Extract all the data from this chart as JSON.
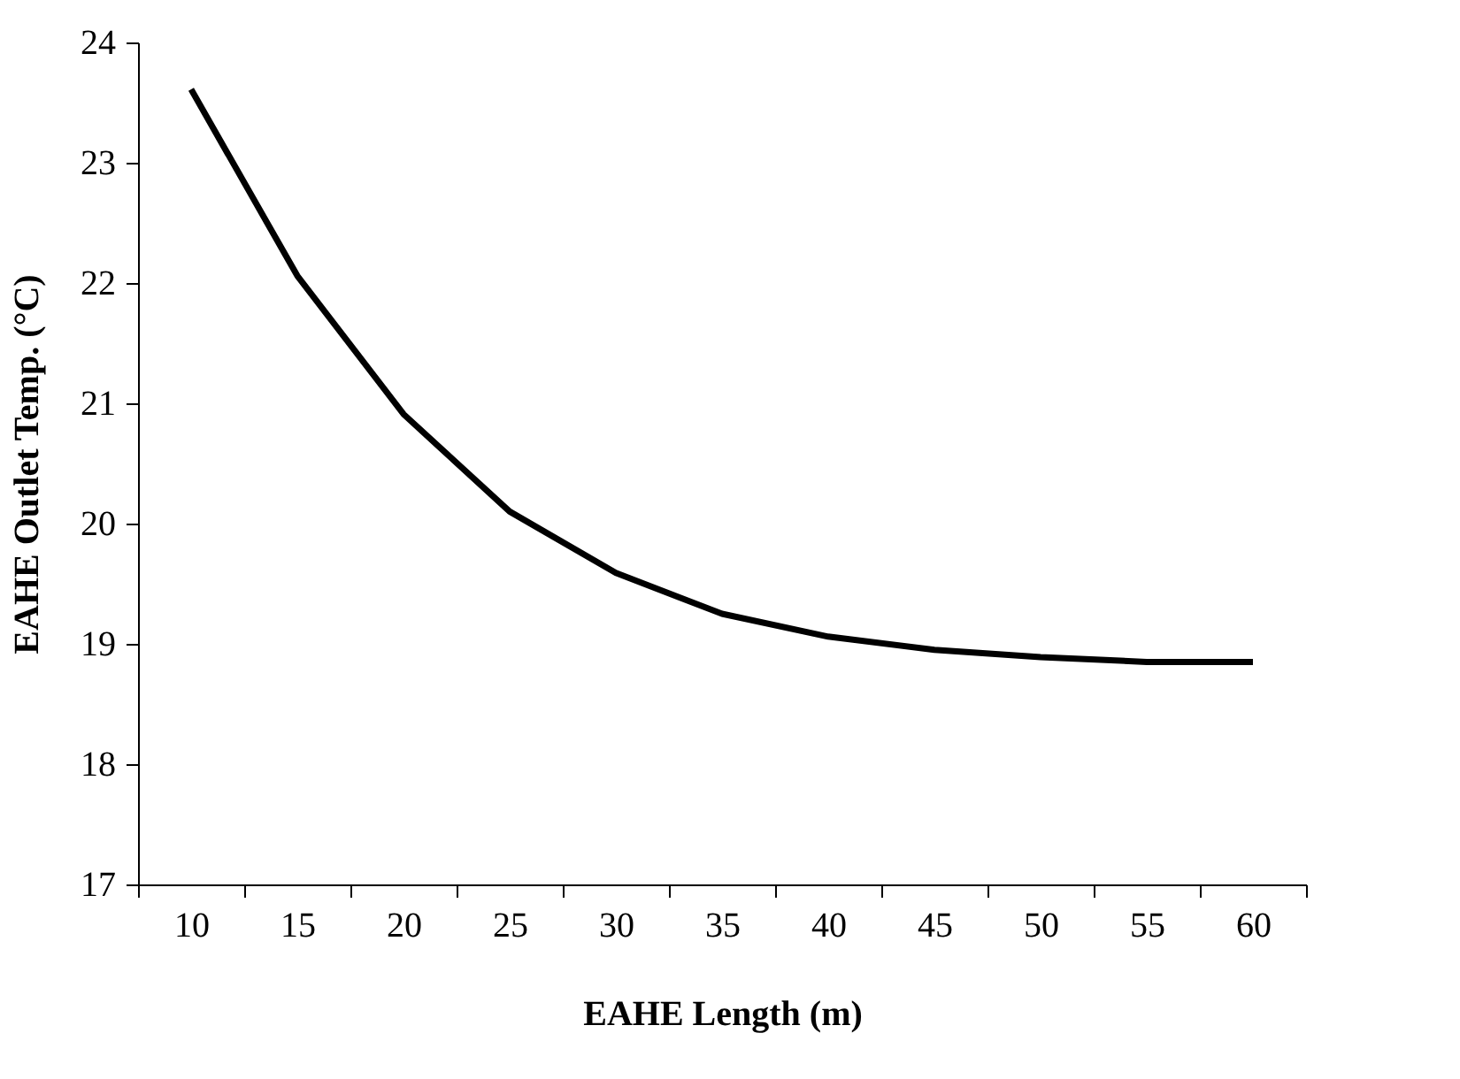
{
  "chart_data": {
    "type": "line",
    "xlabel": "EAHE Length (m)",
    "ylabel": "EAHE Outlet Temp. (°C)",
    "categories": [
      "10",
      "15",
      "20",
      "25",
      "30",
      "35",
      "40",
      "45",
      "50",
      "55",
      "60"
    ],
    "series": [
      {
        "color": "#000000",
        "values": [
          23.61,
          22.06,
          20.91,
          20.1,
          19.59,
          19.25,
          19.06,
          18.95,
          18.89,
          18.85,
          18.85
        ]
      }
    ],
    "ylim": [
      17,
      24
    ],
    "yticks": [
      17,
      18,
      19,
      20,
      21,
      22,
      23,
      24
    ],
    "grid": false,
    "marker": "none",
    "line_style": "solid"
  }
}
